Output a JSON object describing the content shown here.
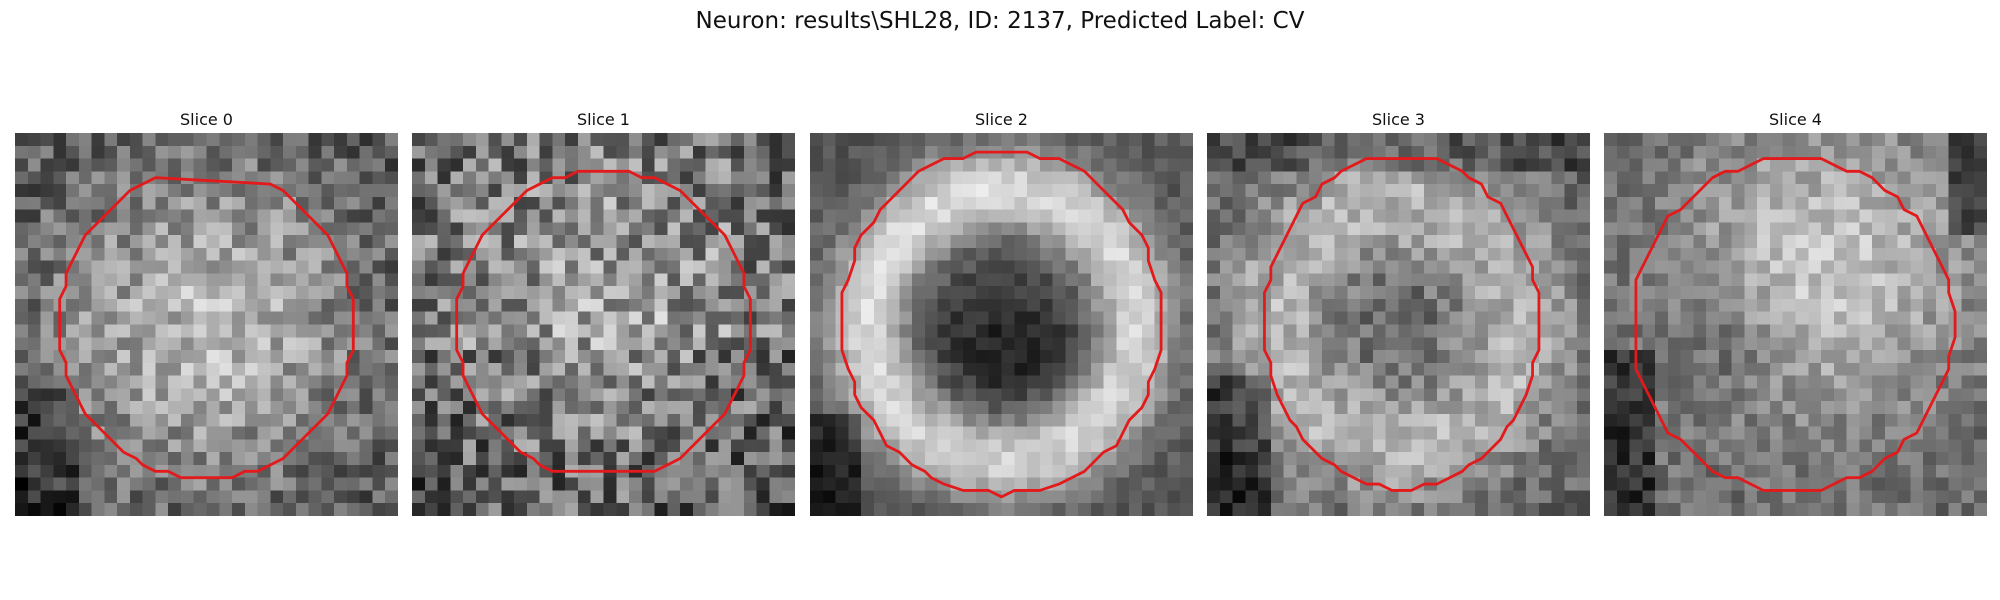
{
  "figure": {
    "title": "Neuron: results\\SHL28, ID: 2137, Predicted Label: CV"
  },
  "panels": [
    {
      "title": "Slice 0",
      "pattern": "bright-blob",
      "seed": 11
    },
    {
      "title": "Slice 1",
      "pattern": "noisy-blob",
      "seed": 23
    },
    {
      "title": "Slice 2",
      "pattern": "ring",
      "seed": 37
    },
    {
      "title": "Slice 3",
      "pattern": "soft-ring",
      "seed": 41
    },
    {
      "title": "Slice 4",
      "pattern": "blob-dark-left",
      "seed": 53
    }
  ],
  "colors": {
    "contour": "#e31a1c",
    "background": "#ffffff"
  }
}
